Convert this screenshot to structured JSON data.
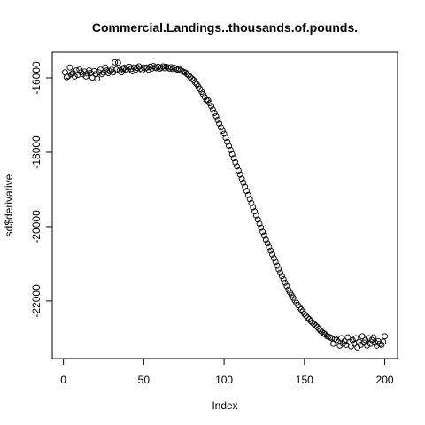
{
  "chart_data": {
    "type": "scatter",
    "title": "Commercial.Landings..thousands.of.pounds.",
    "x_label": "Index",
    "y_label": "sd$derivative",
    "x": [
      1,
      2,
      3,
      4,
      5,
      6,
      7,
      8,
      9,
      10,
      11,
      12,
      13,
      14,
      15,
      16,
      17,
      18,
      19,
      20,
      21,
      22,
      23,
      24,
      25,
      26,
      27,
      28,
      29,
      30,
      31,
      32,
      33,
      34,
      35,
      36,
      37,
      38,
      39,
      40,
      41,
      42,
      43,
      44,
      45,
      46,
      47,
      48,
      49,
      50,
      51,
      52,
      53,
      54,
      55,
      56,
      57,
      58,
      59,
      60,
      61,
      62,
      63,
      64,
      65,
      66,
      67,
      68,
      69,
      70,
      71,
      72,
      73,
      74,
      75,
      76,
      77,
      78,
      79,
      80,
      81,
      82,
      83,
      84,
      85,
      86,
      87,
      88,
      89,
      90,
      91,
      92,
      93,
      94,
      95,
      96,
      97,
      98,
      99,
      100,
      101,
      102,
      103,
      104,
      105,
      106,
      107,
      108,
      109,
      110,
      111,
      112,
      113,
      114,
      115,
      116,
      117,
      118,
      119,
      120,
      121,
      122,
      123,
      124,
      125,
      126,
      127,
      128,
      129,
      130,
      131,
      132,
      133,
      134,
      135,
      136,
      137,
      138,
      139,
      140,
      141,
      142,
      143,
      144,
      145,
      146,
      147,
      148,
      149,
      150,
      151,
      152,
      153,
      154,
      155,
      156,
      157,
      158,
      159,
      160,
      161,
      162,
      163,
      164,
      165,
      166,
      167,
      168,
      169,
      170,
      171,
      172,
      173,
      174,
      175,
      176,
      177,
      178,
      179,
      180,
      181,
      182,
      183,
      184,
      185,
      186,
      187,
      188,
      189,
      190,
      191,
      192,
      193,
      194,
      195,
      196,
      197,
      198,
      199,
      200
    ],
    "values": [
      -15850,
      -15980,
      -15950,
      -15720,
      -15900,
      -15870,
      -15960,
      -15800,
      -15920,
      -15780,
      -15850,
      -15900,
      -15830,
      -15960,
      -15880,
      -15800,
      -15870,
      -15990,
      -15820,
      -15900,
      -16020,
      -15850,
      -15780,
      -15900,
      -15860,
      -15720,
      -15800,
      -15870,
      -15830,
      -15780,
      -15850,
      -15580,
      -15780,
      -15590,
      -15800,
      -15850,
      -15760,
      -15720,
      -15780,
      -15800,
      -15700,
      -15760,
      -15820,
      -15720,
      -15780,
      -15730,
      -15690,
      -15750,
      -15800,
      -15720,
      -15740,
      -15720,
      -15780,
      -15700,
      -15750,
      -15680,
      -15720,
      -15740,
      -15700,
      -15750,
      -15720,
      -15690,
      -15740,
      -15700,
      -15720,
      -15750,
      -15710,
      -15760,
      -15730,
      -15750,
      -15780,
      -15760,
      -15800,
      -15820,
      -15840,
      -15860,
      -15900,
      -15930,
      -15980,
      -16020,
      -16060,
      -16120,
      -16170,
      -16230,
      -16300,
      -16370,
      -16440,
      -16520,
      -16600,
      -16600,
      -16680,
      -16760,
      -16850,
      -16940,
      -17030,
      -17130,
      -17230,
      -17330,
      -17420,
      -17500,
      -17610,
      -17720,
      -17830,
      -17940,
      -18050,
      -18160,
      -18270,
      -18380,
      -18490,
      -18600,
      -18710,
      -18820,
      -18930,
      -19040,
      -19150,
      -19260,
      -19370,
      -19480,
      -19590,
      -19700,
      -19810,
      -19920,
      -20030,
      -20140,
      -20240,
      -20350,
      -20450,
      -20550,
      -20650,
      -20750,
      -20850,
      -20950,
      -21050,
      -21150,
      -21240,
      -21330,
      -21420,
      -21510,
      -21600,
      -21700,
      -21770,
      -21840,
      -21910,
      -21980,
      -22050,
      -22110,
      -22170,
      -22230,
      -22290,
      -22350,
      -22400,
      -22450,
      -22490,
      -22540,
      -22580,
      -22620,
      -22660,
      -22700,
      -22750,
      -22800,
      -22830,
      -22870,
      -22900,
      -22940,
      -22960,
      -22980,
      -23000,
      -23150,
      -23020,
      -23050,
      -23100,
      -23200,
      -23000,
      -23150,
      -23080,
      -23180,
      -22980,
      -23100,
      -23220,
      -23050,
      -23150,
      -23000,
      -23250,
      -23100,
      -23180,
      -22950,
      -23120,
      -23050,
      -23200,
      -23000,
      -23150,
      -23050,
      -22980,
      -23120,
      -23200,
      -23080,
      -23150,
      -23180,
      -23100,
      -22950
    ],
    "color": "#000000",
    "xlim": [
      -6.96,
      207.96
    ],
    "xticks": [
      0,
      50,
      100,
      150,
      200
    ],
    "ylim": [
      -23550,
      -15310
    ],
    "yticks": [
      -22000,
      -20000,
      -18000,
      -16000
    ]
  }
}
